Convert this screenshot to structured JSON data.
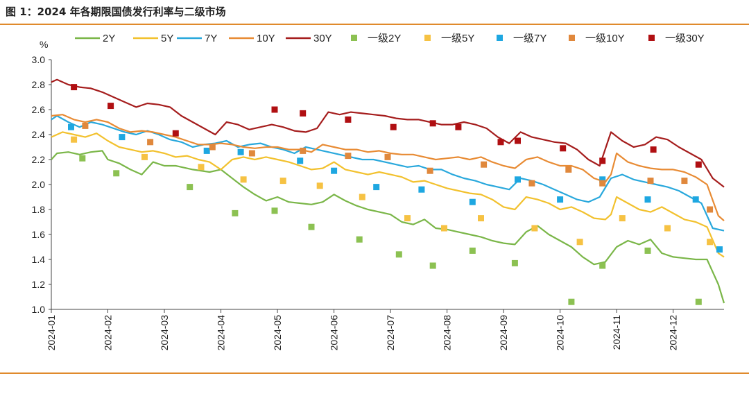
{
  "figure": {
    "title": "图 1：2024 年各期限国债发行利率与二级市场"
  },
  "chart_data": {
    "type": "line",
    "title": "图 1：2024 年各期限国债发行利率与二级市场",
    "ylabel": "%",
    "ylim": [
      1.0,
      3.0
    ],
    "yticks": [
      "1.0",
      "1.2",
      "1.4",
      "1.6",
      "1.8",
      "2.0",
      "2.2",
      "2.4",
      "2.6",
      "2.8",
      "3.0"
    ],
    "x_tick_labels": [
      "2024-01",
      "2024-02",
      "2024-03",
      "2024-04",
      "2024-05",
      "2024-06",
      "2024-07",
      "2024-08",
      "2024-09",
      "2024-10",
      "2024-11",
      "2024-12"
    ],
    "xlim_months": [
      0,
      11.9
    ],
    "grid": false,
    "legend_position": "top",
    "series": [
      {
        "name": "2Y",
        "kind": "line",
        "color": "#7ab648",
        "x": [
          0,
          0.1,
          0.3,
          0.5,
          0.7,
          0.9,
          1.0,
          1.2,
          1.4,
          1.6,
          1.8,
          2.0,
          2.2,
          2.5,
          2.8,
          3.0,
          3.2,
          3.4,
          3.6,
          3.8,
          4.0,
          4.2,
          4.4,
          4.6,
          4.8,
          5.0,
          5.2,
          5.4,
          5.6,
          5.8,
          6.0,
          6.2,
          6.4,
          6.6,
          6.8,
          7.0,
          7.2,
          7.4,
          7.6,
          7.8,
          8.0,
          8.2,
          8.4,
          8.6,
          8.8,
          9.0,
          9.2,
          9.4,
          9.6,
          9.8,
          10.0,
          10.2,
          10.4,
          10.6,
          10.8,
          11.0,
          11.2,
          11.4,
          11.6,
          11.8,
          11.9
        ],
        "y": [
          2.2,
          2.25,
          2.26,
          2.24,
          2.26,
          2.27,
          2.2,
          2.17,
          2.12,
          2.08,
          2.18,
          2.15,
          2.15,
          2.12,
          2.1,
          2.12,
          2.05,
          1.98,
          1.92,
          1.87,
          1.9,
          1.86,
          1.85,
          1.84,
          1.86,
          1.92,
          1.87,
          1.83,
          1.8,
          1.78,
          1.76,
          1.7,
          1.68,
          1.72,
          1.65,
          1.64,
          1.62,
          1.6,
          1.58,
          1.55,
          1.53,
          1.52,
          1.62,
          1.67,
          1.6,
          1.55,
          1.5,
          1.42,
          1.36,
          1.38,
          1.5,
          1.55,
          1.52,
          1.56,
          1.45,
          1.42,
          1.41,
          1.4,
          1.4,
          1.2,
          1.05
        ]
      },
      {
        "name": "5Y",
        "kind": "line",
        "color": "#f2c12e",
        "x": [
          0,
          0.2,
          0.4,
          0.6,
          0.8,
          1.0,
          1.2,
          1.4,
          1.6,
          1.8,
          2.0,
          2.2,
          2.4,
          2.6,
          2.8,
          3.0,
          3.2,
          3.4,
          3.6,
          3.8,
          4.0,
          4.2,
          4.4,
          4.6,
          4.8,
          5.0,
          5.2,
          5.4,
          5.6,
          5.8,
          6.0,
          6.2,
          6.4,
          6.6,
          6.8,
          7.0,
          7.2,
          7.4,
          7.6,
          7.8,
          8.0,
          8.2,
          8.4,
          8.6,
          8.8,
          9.0,
          9.2,
          9.4,
          9.6,
          9.8,
          9.9,
          10.0,
          10.2,
          10.4,
          10.6,
          10.8,
          11.0,
          11.2,
          11.4,
          11.6,
          11.8,
          11.9
        ],
        "y": [
          2.38,
          2.42,
          2.4,
          2.38,
          2.41,
          2.35,
          2.3,
          2.28,
          2.26,
          2.27,
          2.25,
          2.22,
          2.23,
          2.2,
          2.18,
          2.12,
          2.2,
          2.22,
          2.2,
          2.22,
          2.2,
          2.18,
          2.15,
          2.12,
          2.13,
          2.18,
          2.12,
          2.1,
          2.08,
          2.1,
          2.08,
          2.06,
          2.02,
          2.03,
          2.0,
          1.97,
          1.95,
          1.93,
          1.92,
          1.88,
          1.82,
          1.8,
          1.9,
          1.88,
          1.85,
          1.8,
          1.82,
          1.78,
          1.73,
          1.72,
          1.76,
          1.9,
          1.85,
          1.8,
          1.78,
          1.82,
          1.77,
          1.72,
          1.7,
          1.66,
          1.45,
          1.42
        ]
      },
      {
        "name": "7Y",
        "kind": "line",
        "color": "#29a8dc",
        "x": [
          0,
          0.1,
          0.3,
          0.5,
          0.7,
          0.9,
          1.1,
          1.3,
          1.5,
          1.7,
          1.9,
          2.1,
          2.3,
          2.5,
          2.7,
          2.9,
          3.1,
          3.3,
          3.5,
          3.7,
          3.9,
          4.1,
          4.3,
          4.5,
          4.7,
          4.9,
          5.1,
          5.3,
          5.5,
          5.7,
          5.9,
          6.1,
          6.3,
          6.5,
          6.7,
          6.9,
          7.1,
          7.3,
          7.5,
          7.7,
          7.9,
          8.1,
          8.3,
          8.5,
          8.7,
          8.9,
          9.1,
          9.3,
          9.5,
          9.7,
          9.9,
          10.1,
          10.3,
          10.5,
          10.7,
          10.9,
          11.1,
          11.3,
          11.5,
          11.7,
          11.9
        ],
        "y": [
          2.52,
          2.55,
          2.5,
          2.46,
          2.5,
          2.48,
          2.45,
          2.42,
          2.4,
          2.43,
          2.4,
          2.36,
          2.34,
          2.3,
          2.32,
          2.33,
          2.35,
          2.3,
          2.32,
          2.33,
          2.3,
          2.28,
          2.25,
          2.3,
          2.28,
          2.26,
          2.24,
          2.22,
          2.2,
          2.2,
          2.18,
          2.16,
          2.14,
          2.15,
          2.12,
          2.12,
          2.08,
          2.05,
          2.03,
          2.0,
          1.98,
          1.96,
          2.05,
          2.03,
          2.0,
          1.96,
          1.92,
          1.88,
          1.86,
          1.9,
          2.05,
          2.08,
          2.04,
          2.02,
          2.0,
          1.98,
          1.95,
          1.9,
          1.85,
          1.65,
          1.63
        ]
      },
      {
        "name": "10Y",
        "kind": "line",
        "color": "#e88b34",
        "x": [
          0,
          0.2,
          0.4,
          0.6,
          0.8,
          1.0,
          1.2,
          1.4,
          1.6,
          1.8,
          2.0,
          2.2,
          2.4,
          2.6,
          2.8,
          3.0,
          3.2,
          3.4,
          3.6,
          3.8,
          4.0,
          4.2,
          4.4,
          4.6,
          4.8,
          5.0,
          5.2,
          5.4,
          5.6,
          5.8,
          6.0,
          6.2,
          6.4,
          6.6,
          6.8,
          7.0,
          7.2,
          7.4,
          7.6,
          7.8,
          8.0,
          8.2,
          8.4,
          8.6,
          8.8,
          9.0,
          9.2,
          9.4,
          9.6,
          9.8,
          9.9,
          10.0,
          10.2,
          10.4,
          10.6,
          10.8,
          11.0,
          11.2,
          11.4,
          11.6,
          11.8,
          11.9
        ],
        "y": [
          2.55,
          2.56,
          2.52,
          2.5,
          2.52,
          2.5,
          2.45,
          2.42,
          2.43,
          2.42,
          2.4,
          2.38,
          2.35,
          2.32,
          2.32,
          2.33,
          2.32,
          2.3,
          2.29,
          2.3,
          2.3,
          2.28,
          2.28,
          2.26,
          2.32,
          2.3,
          2.28,
          2.28,
          2.26,
          2.27,
          2.25,
          2.24,
          2.24,
          2.22,
          2.2,
          2.21,
          2.22,
          2.2,
          2.22,
          2.18,
          2.15,
          2.13,
          2.2,
          2.22,
          2.18,
          2.15,
          2.15,
          2.12,
          2.05,
          2.02,
          2.08,
          2.25,
          2.18,
          2.15,
          2.13,
          2.12,
          2.12,
          2.1,
          2.06,
          2.0,
          1.75,
          1.71
        ]
      },
      {
        "name": "30Y",
        "kind": "line",
        "color": "#a51d1d",
        "x": [
          0,
          0.1,
          0.3,
          0.5,
          0.7,
          0.9,
          1.1,
          1.3,
          1.5,
          1.7,
          1.9,
          2.1,
          2.3,
          2.5,
          2.7,
          2.9,
          3.1,
          3.3,
          3.5,
          3.7,
          3.9,
          4.1,
          4.3,
          4.5,
          4.7,
          4.9,
          5.1,
          5.3,
          5.5,
          5.7,
          5.9,
          6.1,
          6.3,
          6.5,
          6.7,
          6.9,
          7.1,
          7.3,
          7.5,
          7.7,
          7.9,
          8.1,
          8.3,
          8.5,
          8.7,
          8.9,
          9.1,
          9.3,
          9.5,
          9.7,
          9.9,
          10.1,
          10.3,
          10.5,
          10.7,
          10.9,
          11.1,
          11.3,
          11.5,
          11.7,
          11.9
        ],
        "y": [
          2.82,
          2.84,
          2.8,
          2.78,
          2.77,
          2.74,
          2.7,
          2.66,
          2.62,
          2.65,
          2.64,
          2.62,
          2.55,
          2.5,
          2.45,
          2.4,
          2.5,
          2.48,
          2.44,
          2.46,
          2.48,
          2.46,
          2.43,
          2.42,
          2.45,
          2.58,
          2.56,
          2.58,
          2.57,
          2.56,
          2.55,
          2.53,
          2.52,
          2.52,
          2.5,
          2.48,
          2.48,
          2.5,
          2.48,
          2.45,
          2.38,
          2.33,
          2.42,
          2.38,
          2.36,
          2.34,
          2.33,
          2.28,
          2.2,
          2.15,
          2.42,
          2.35,
          2.3,
          2.32,
          2.38,
          2.36,
          2.3,
          2.25,
          2.2,
          2.05,
          1.98
        ]
      },
      {
        "name": "一级2Y",
        "kind": "marker",
        "color": "#8cc152",
        "x": [
          0.55,
          1.15,
          2.45,
          3.25,
          3.95,
          4.6,
          5.45,
          6.15,
          6.75,
          7.45,
          8.2,
          9.2,
          9.75,
          10.55,
          11.45
        ],
        "y": [
          2.21,
          2.09,
          1.98,
          1.77,
          1.79,
          1.66,
          1.56,
          1.44,
          1.35,
          1.47,
          1.37,
          1.06,
          1.35,
          1.47,
          1.06
        ]
      },
      {
        "name": "一级5Y",
        "kind": "marker",
        "color": "#f6c243",
        "x": [
          0.4,
          1.65,
          2.65,
          3.4,
          4.1,
          4.75,
          5.5,
          6.3,
          6.95,
          7.6,
          8.55,
          9.35,
          10.1,
          10.9,
          11.65
        ],
        "y": [
          2.36,
          2.22,
          2.14,
          2.04,
          2.03,
          1.99,
          1.9,
          1.73,
          1.65,
          1.73,
          1.65,
          1.54,
          1.73,
          1.65,
          1.54
        ]
      },
      {
        "name": "一级7Y",
        "kind": "marker",
        "color": "#1ea7e1",
        "x": [
          0.35,
          1.25,
          2.75,
          3.35,
          4.4,
          5.0,
          5.75,
          6.55,
          7.45,
          8.25,
          9.0,
          9.75,
          10.55,
          11.4,
          11.82
        ],
        "y": [
          2.46,
          2.38,
          2.27,
          2.26,
          2.19,
          2.11,
          1.98,
          1.96,
          1.86,
          2.04,
          1.88,
          2.04,
          1.88,
          1.88,
          1.48
        ]
      },
      {
        "name": "一级10Y",
        "kind": "marker",
        "color": "#e0883c",
        "x": [
          0.6,
          1.75,
          2.85,
          3.55,
          4.45,
          5.25,
          5.95,
          6.7,
          7.65,
          8.5,
          9.15,
          9.75,
          10.6,
          11.2,
          11.65
        ],
        "y": [
          2.47,
          2.34,
          2.3,
          2.25,
          2.27,
          2.23,
          2.22,
          2.11,
          2.16,
          2.01,
          2.12,
          2.01,
          2.03,
          2.03,
          1.8
        ]
      },
      {
        "name": "一级30Y",
        "kind": "marker",
        "color": "#b00f12",
        "x": [
          0.4,
          1.05,
          2.2,
          3.95,
          4.45,
          5.25,
          6.05,
          6.75,
          7.2,
          7.95,
          8.25,
          9.05,
          9.75,
          10.65,
          11.45
        ],
        "y": [
          2.78,
          2.63,
          2.41,
          2.6,
          2.57,
          2.52,
          2.46,
          2.49,
          2.46,
          2.34,
          2.35,
          2.29,
          2.19,
          2.28,
          2.16
        ]
      }
    ]
  }
}
